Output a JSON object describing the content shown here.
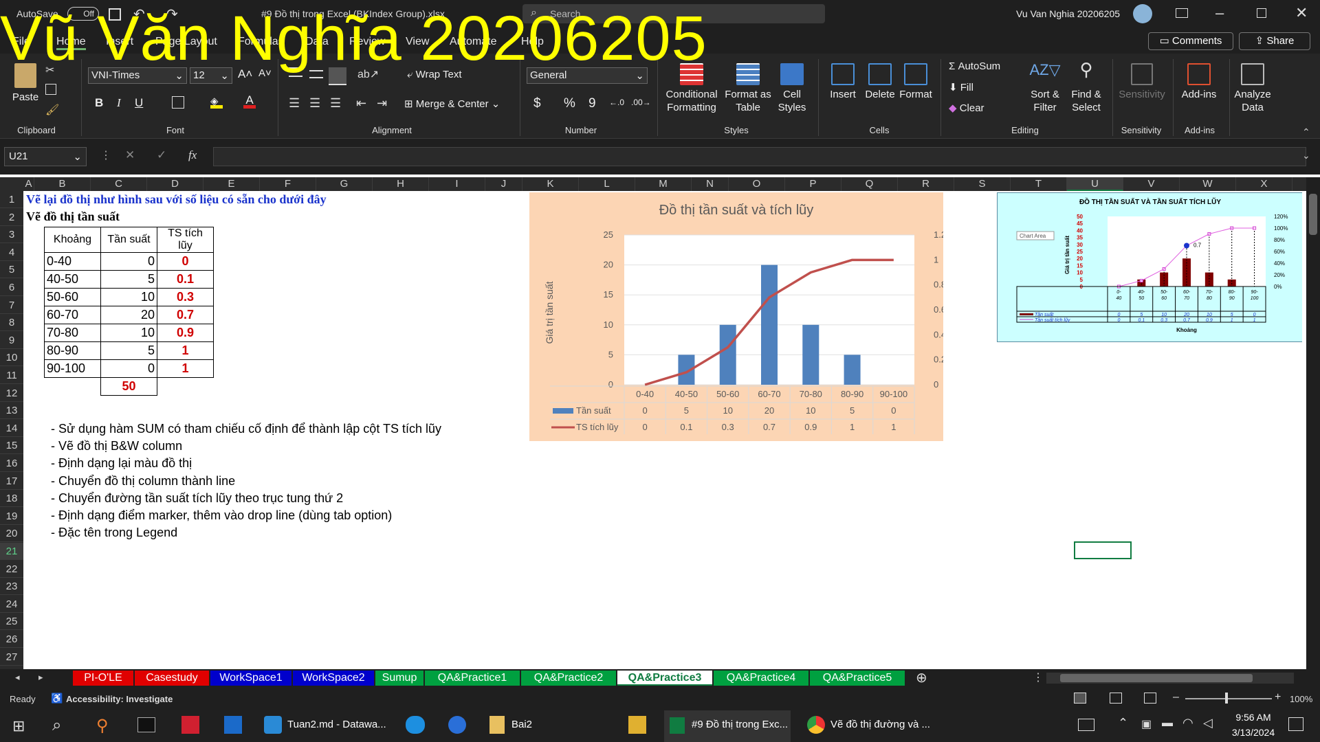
{
  "window": {
    "autosave": "AutoSave",
    "autosave_state": "Off",
    "file_title": "#9 Đồ thị trong Excel (BKIndex Group).xlsx",
    "search_placeholder": "Search",
    "user": "Vu Van Nghia 20206205"
  },
  "tabs": [
    "File",
    "Home",
    "Insert",
    "Page Layout",
    "Formulas",
    "Data",
    "Review",
    "View",
    "Automate",
    "Help"
  ],
  "comments": "Comments",
  "share": "Share",
  "ribbon": {
    "clipboard": {
      "paste": "Paste",
      "label": "Clipboard"
    },
    "font": {
      "name": "VNI-Times",
      "size": "12",
      "label": "Font",
      "bold": "B",
      "italic": "I",
      "underline": "U"
    },
    "alignment": {
      "wrap": "Wrap Text",
      "merge": "Merge & Center",
      "label": "Alignment"
    },
    "number": {
      "format": "General",
      "label": "Number",
      "currency": "$",
      "percent": "%",
      "comma": "9"
    },
    "styles": {
      "cond1": "Conditional",
      "cond2": "Formatting",
      "fmt1": "Format as",
      "fmt2": "Table",
      "cell1": "Cell",
      "cell2": "Styles",
      "label": "Styles"
    },
    "cells": {
      "insert": "Insert",
      "delete": "Delete",
      "format": "Format",
      "label": "Cells"
    },
    "editing": {
      "autosum": "AutoSum",
      "fill": "Fill",
      "clear": "Clear",
      "sort1": "Sort &",
      "sort2": "Filter",
      "find1": "Find &",
      "find2": "Select",
      "label": "Editing"
    },
    "sensitivity": {
      "btn": "Sensitivity",
      "label": "Sensitivity"
    },
    "addins": {
      "btn": "Add-ins",
      "label": "Add-ins"
    },
    "analyze": {
      "btn1": "Analyze",
      "btn2": "Data"
    }
  },
  "formula": {
    "namebox": "U21",
    "fx": "fx"
  },
  "columns": [
    "A",
    "B",
    "C",
    "D",
    "E",
    "F",
    "G",
    "H",
    "I",
    "J",
    "K",
    "L",
    "M",
    "N",
    "O",
    "P",
    "Q",
    "R",
    "S",
    "T",
    "U",
    "V",
    "W",
    "X"
  ],
  "rows": [
    "1",
    "2",
    "3",
    "4",
    "5",
    "6",
    "7",
    "8",
    "9",
    "10",
    "11",
    "12",
    "13",
    "14",
    "15",
    "16",
    "17",
    "18",
    "19",
    "20",
    "21",
    "22",
    "23",
    "24",
    "25",
    "26",
    "27"
  ],
  "sheet": {
    "r1": "Vẽ lại đồ thị như hình sau với số liệu có sẵn cho dưới đây",
    "r2": "Vẽ đồ thị tần suất",
    "headers": [
      "Khoảng",
      "Tần suất",
      "TS tích lũy"
    ],
    "table": [
      [
        "0-40",
        "0",
        "0"
      ],
      [
        "40-50",
        "5",
        "0.1"
      ],
      [
        "50-60",
        "10",
        "0.3"
      ],
      [
        "60-70",
        "20",
        "0.7"
      ],
      [
        "70-80",
        "10",
        "0.9"
      ],
      [
        "80-90",
        "5",
        "1"
      ],
      [
        "90-100",
        "0",
        "1"
      ]
    ],
    "total": "50",
    "notes": [
      "- Sử dụng hàm SUM có tham chiếu cố định để thành lập cột TS tích lũy",
      "- Vẽ đồ thị B&W column",
      "- Định dạng lại màu đồ thị",
      "- Chuyển đồ thị column thành line",
      "- Chuyển đường tần suất tích lũy theo trục tung thứ 2",
      "- Định dạng điểm marker, thêm vào drop line (dùng tab option)",
      "- Đặc tên trong Legend"
    ]
  },
  "chart_data": [
    {
      "type": "bar",
      "title": "Đồ thị tần suất và tích lũy",
      "ylabel": "Giá trị tần suất",
      "categories": [
        "0-40",
        "40-50",
        "50-60",
        "60-70",
        "70-80",
        "80-90",
        "90-100"
      ],
      "series": [
        {
          "name": "Tần suất",
          "type": "bar",
          "values": [
            0,
            5,
            10,
            20,
            10,
            5,
            0
          ]
        },
        {
          "name": "TS tích lũy",
          "type": "line",
          "axis": "secondary",
          "values": [
            0,
            0.1,
            0.3,
            0.7,
            0.9,
            1,
            1
          ]
        }
      ],
      "ylim": [
        0,
        25
      ],
      "y2lim": [
        0,
        1.2
      ],
      "yticks": [
        "0",
        "5",
        "10",
        "15",
        "20",
        "25"
      ],
      "y2ticks": [
        "0",
        "0.2",
        "0.4",
        "0.6",
        "0.8",
        "1",
        "1.2"
      ],
      "legend": "table"
    },
    {
      "type": "bar",
      "title": "ĐỒ THỊ TẦN SUẤT VÀ TẦN SUẤT TÍCH LŨY",
      "xlabel": "Khoảng",
      "ylabel": "Giá trị tần suất",
      "tooltip": "Chart Area",
      "annotation": "0.7",
      "categories": [
        "0-40",
        "40-50",
        "50-60",
        "60-70",
        "70-80",
        "80-90",
        "90-100"
      ],
      "series": [
        {
          "name": "Tần suất",
          "values": [
            0,
            5,
            10,
            20,
            10,
            5,
            0
          ]
        },
        {
          "name": "Tần suất tích lũy",
          "axis": "secondary",
          "values": [
            0,
            0.1,
            0.3,
            0.7,
            0.9,
            1,
            1
          ]
        }
      ],
      "ylim": [
        0,
        50
      ],
      "y2lim": [
        0,
        1.2
      ],
      "yticks": [
        "0",
        "5",
        "10",
        "15",
        "20",
        "25",
        "30",
        "35",
        "40",
        "45",
        "50"
      ],
      "y2ticks": [
        "0%",
        "20%",
        "40%",
        "60%",
        "80%",
        "100%",
        "120%"
      ]
    }
  ],
  "sheet_tabs": [
    {
      "name": "PI-O'LE",
      "color": "#e00000"
    },
    {
      "name": "Casestudy",
      "color": "#e00000"
    },
    {
      "name": "WorkSpace1",
      "color": "#0000cc"
    },
    {
      "name": "WorkSpace2",
      "color": "#0000cc"
    },
    {
      "name": "Sumup",
      "color": "#00a040"
    },
    {
      "name": "QA&Practice1",
      "color": "#00a040"
    },
    {
      "name": "QA&Practice2",
      "color": "#00a040"
    },
    {
      "name": "QA&Practice3",
      "color": "#ffffff"
    },
    {
      "name": "QA&Practice4",
      "color": "#00a040"
    },
    {
      "name": "QA&Practice5",
      "color": "#00a040"
    }
  ],
  "status": {
    "ready": "Ready",
    "accessibility": "Accessibility: Investigate",
    "zoom": "100%"
  },
  "taskbar": {
    "items": [
      "Tuan2.md - Datawa...",
      "Bai2",
      "#9 Đồ thị trong Exc...",
      "Vẽ đồ thị đường và ..."
    ],
    "time": "9:56 AM",
    "date": "3/13/2024"
  },
  "watermark": "Vũ Văn Nghĩa 20206205"
}
